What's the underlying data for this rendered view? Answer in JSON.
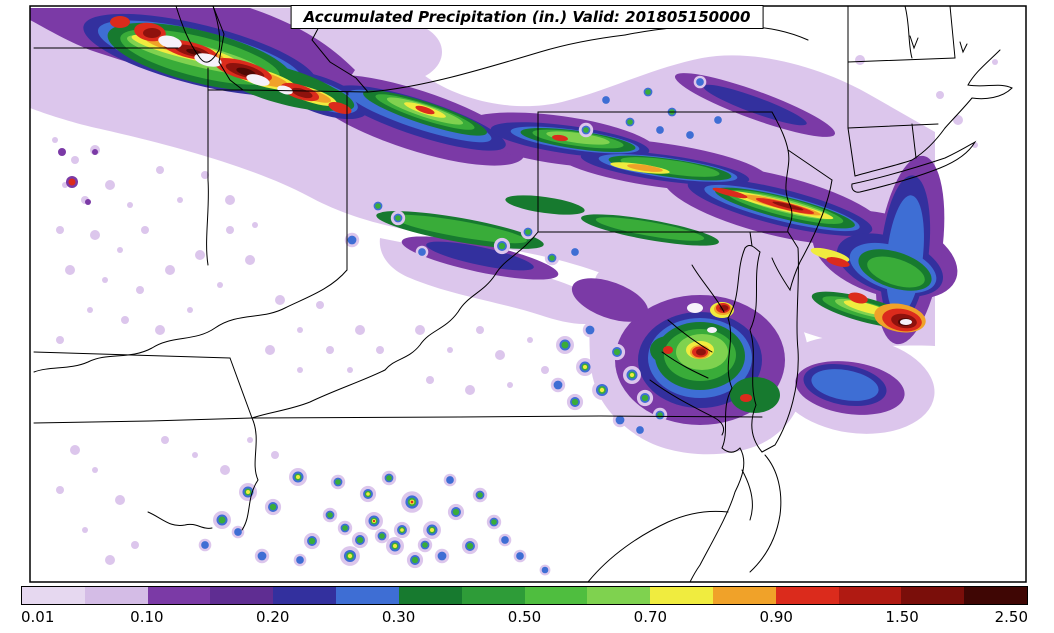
{
  "figure": {
    "title": "Accumulated Precipitation (in.) Valid: 201805150000"
  },
  "colorbar": {
    "units": "in.",
    "tick_labels": [
      "0.01",
      "0.10",
      "0.20",
      "0.30",
      "0.50",
      "0.70",
      "0.90",
      "1.50",
      "2.50"
    ],
    "segment_colors": [
      "#E6D8F0",
      "#D4BCE6",
      "#7B3AA6",
      "#5F2D92",
      "#33309E",
      "#3E6ED4",
      "#177A2F",
      "#2E9C38",
      "#4FBE3F",
      "#7FD24F",
      "#F0EC3F",
      "#F0A229",
      "#DB2B1C",
      "#B01A12",
      "#7A0E0A",
      "#3F0604"
    ]
  },
  "chart_data": {
    "type": "heatmap",
    "title": "Accumulated Precipitation (in.) Valid: 201805150000",
    "variable": "Accumulated Precipitation",
    "units": "in.",
    "valid_time": "201805150000",
    "legend_position": "bottom",
    "labeled_levels": [
      0.01,
      0.1,
      0.2,
      0.3,
      0.5,
      0.7,
      0.9,
      1.5,
      2.5
    ],
    "contour_levels": [
      0.01,
      0.05,
      0.1,
      0.15,
      0.2,
      0.25,
      0.3,
      0.4,
      0.5,
      0.6,
      0.7,
      0.8,
      0.9,
      1.2,
      1.5,
      2.0,
      2.5
    ],
    "palette": [
      "#E6D8F0",
      "#D4BCE6",
      "#7B3AA6",
      "#5F2D92",
      "#33309E",
      "#3E6ED4",
      "#177A2F",
      "#2E9C38",
      "#4FBE3F",
      "#7FD24F",
      "#F0EC3F",
      "#F0A229",
      "#DB2B1C",
      "#B01A12",
      "#7A0E0A",
      "#3F0604"
    ],
    "region_hint": "Upper Midwest through Mid-Atlantic and Northeast US with state borders and coastline",
    "features": [
      "Intense precipitation band (locally > 1.50 in. with > 2.50 in. cores) over Wisconsin and lower Michigan at top left",
      "Elongated heavy band (0.50 - 1.50 in.) stretching ESE across northern Ohio, Pennsylvania and New Jersey, extending offshore with a > 1.50 in. core near the right edge",
      "Cluster of heavy cells (0.90 - 2.50 in.) around Chesapeake Bay and the Delmarva peninsula",
      "Scattered small convective cells (0.10 - 0.70 in.) across Tennessee, the Carolinas and southern Virginia",
      "Widespread light precipitation (0.01 - 0.10 in.) over Kentucky, West Virginia, Virginia and New York"
    ]
  }
}
